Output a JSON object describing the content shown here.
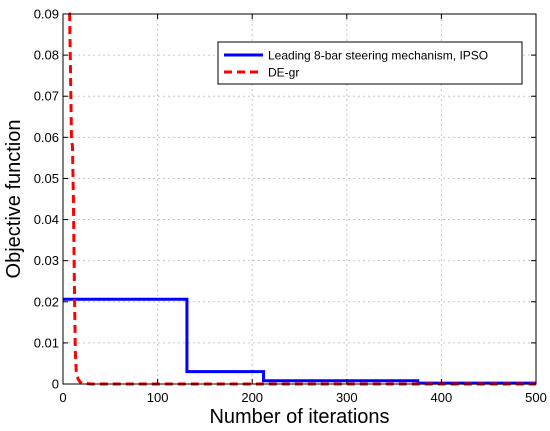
{
  "chart_data": {
    "type": "line",
    "title": "",
    "xlabel": "Number of iterations",
    "ylabel": "Objective function",
    "xlim": [
      0,
      500
    ],
    "ylim": [
      0,
      0.09
    ],
    "x_ticks": [
      "0",
      "100",
      "200",
      "300",
      "400",
      "500"
    ],
    "y_ticks": [
      "0",
      "0.01",
      "0.02",
      "0.03",
      "0.04",
      "0.05",
      "0.06",
      "0.07",
      "0.08",
      "0.09"
    ],
    "grid": true,
    "legend_position": "top-right",
    "series": [
      {
        "name": "Leading 8-bar steering mechanism, IPSO",
        "color": "#0000ff",
        "style": "solid",
        "x": [
          0,
          131,
          131,
          212,
          212,
          375,
          375,
          500
        ],
        "y": [
          0.0206,
          0.0206,
          0.003,
          0.003,
          0.0008,
          0.0008,
          0.0002,
          0.0002
        ]
      },
      {
        "name": "DE-gr",
        "color": "#ff0000",
        "style": "dashed",
        "x": [
          6,
          7,
          8,
          9,
          10,
          11,
          12,
          13,
          14,
          16,
          18,
          20,
          25,
          30,
          60,
          100,
          200,
          300,
          400,
          500
        ],
        "y": [
          0.09,
          0.09,
          0.075,
          0.059,
          0.058,
          0.045,
          0.025,
          0.008,
          0.003,
          0.0012,
          0.0005,
          0.0002,
          0.0001,
          0.0,
          0.0,
          0.0,
          0.0,
          0.0,
          0.0,
          0.0
        ]
      }
    ]
  }
}
